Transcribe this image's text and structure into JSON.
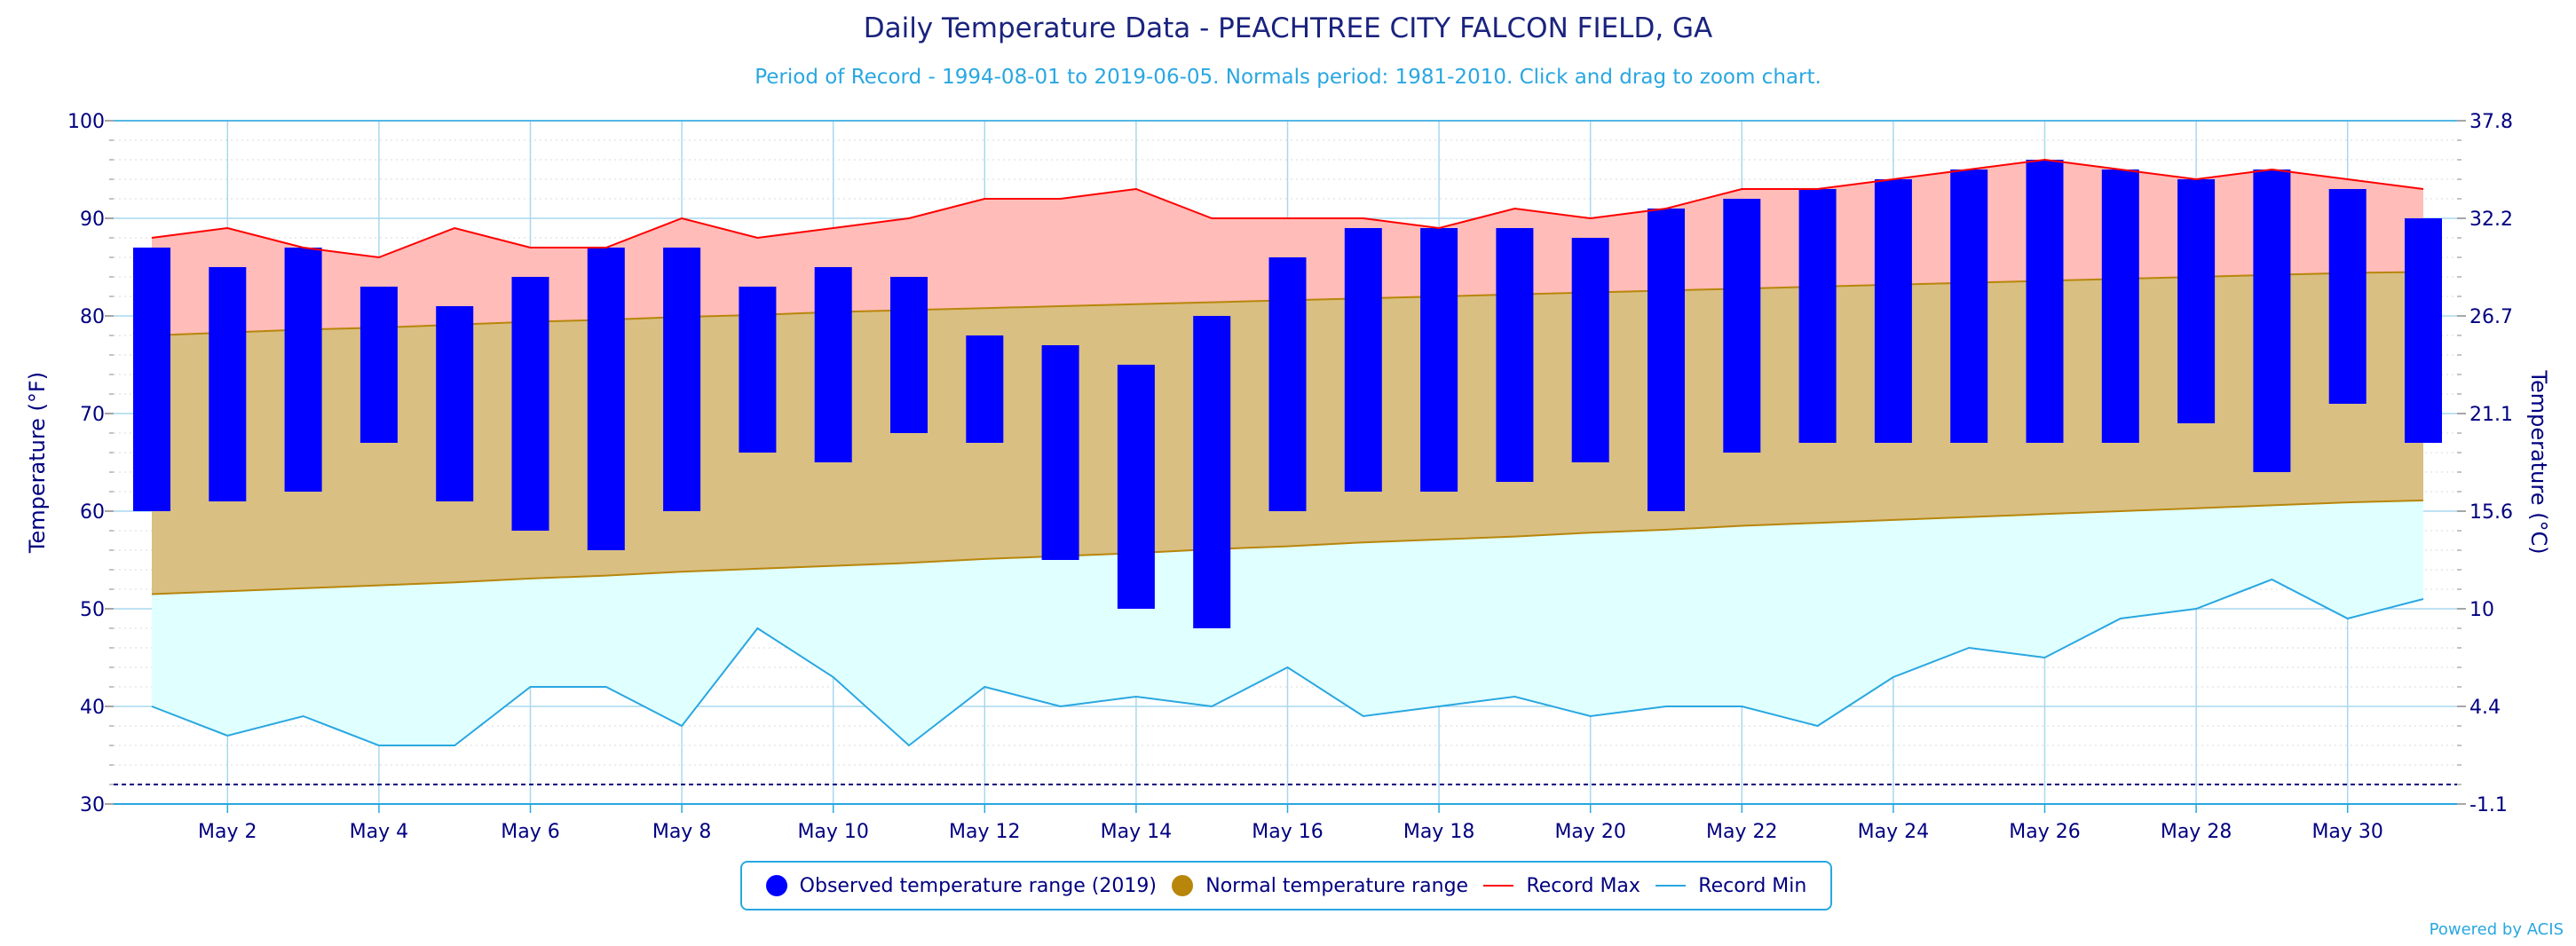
{
  "title": "Daily Temperature Data - PEACHTREE CITY FALCON FIELD, GA",
  "subtitle": "Period of Record - 1994-08-01 to 2019-06-05. Normals period: 1981-2010. Click and drag to zoom chart.",
  "credits": "Powered by ACIS",
  "colors": {
    "observed": "#0000ff",
    "normal_fill": "#d9bf82",
    "normal_line": "#b8860b",
    "record_max_line": "#ff0000",
    "record_max_fill": "#ffbcb8",
    "record_min_line": "#29a7e1",
    "record_min_fill": "#e0ffff",
    "axis": "#29a7e1",
    "text": "#000080"
  },
  "legend": [
    {
      "label": "Observed temperature range (2019)",
      "symbol": "dot",
      "color": "#0000ff"
    },
    {
      "label": "Normal temperature range",
      "symbol": "dot",
      "color": "#b8860b"
    },
    {
      "label": "Record Max",
      "symbol": "line",
      "color": "#ff0000"
    },
    {
      "label": "Record Min",
      "symbol": "line",
      "color": "#29a7e1"
    }
  ],
  "chart_data": {
    "type": "bar",
    "ylabel": "Temperature (°F)",
    "y2label": "Temperature (°C)",
    "ylim": [
      30,
      100
    ],
    "yticks": [
      30,
      40,
      50,
      60,
      70,
      80,
      90,
      100
    ],
    "y2ticks": [
      "-1.1",
      "4.4",
      "10",
      "15.6",
      "21.1",
      "26.7",
      "32.2",
      "37.8"
    ],
    "x_ticks": [
      {
        "day": 2,
        "label": "May 2"
      },
      {
        "day": 4,
        "label": "May 4"
      },
      {
        "day": 6,
        "label": "May 6"
      },
      {
        "day": 8,
        "label": "May 8"
      },
      {
        "day": 10,
        "label": "May 10"
      },
      {
        "day": 12,
        "label": "May 12"
      },
      {
        "day": 14,
        "label": "May 14"
      },
      {
        "day": 16,
        "label": "May 16"
      },
      {
        "day": 18,
        "label": "May 18"
      },
      {
        "day": 20,
        "label": "May 20"
      },
      {
        "day": 22,
        "label": "May 22"
      },
      {
        "day": 24,
        "label": "May 24"
      },
      {
        "day": 26,
        "label": "May 26"
      },
      {
        "day": 28,
        "label": "May 28"
      },
      {
        "day": 30,
        "label": "May 30"
      }
    ],
    "freeze_line": 32,
    "days": [
      1,
      2,
      3,
      4,
      5,
      6,
      7,
      8,
      9,
      10,
      11,
      12,
      13,
      14,
      15,
      16,
      17,
      18,
      19,
      20,
      21,
      22,
      23,
      24,
      25,
      26,
      27,
      28,
      29,
      30,
      31
    ],
    "series": [
      {
        "name": "Observed temperature range (2019)",
        "low": [
          60,
          61,
          62,
          67,
          61,
          58,
          56,
          60,
          66,
          65,
          68,
          67,
          55,
          50,
          48,
          60,
          62,
          62,
          63,
          65,
          60,
          66,
          67,
          67,
          67,
          67,
          67,
          69,
          64,
          71,
          67
        ],
        "high": [
          87,
          85,
          87,
          83,
          81,
          84,
          87,
          87,
          83,
          85,
          84,
          78,
          77,
          75,
          80,
          86,
          89,
          89,
          89,
          88,
          91,
          92,
          93,
          94,
          95,
          96,
          95,
          94,
          95,
          93,
          90
        ]
      },
      {
        "name": "Normal temperature range",
        "low": [
          51.5,
          51.8,
          52.1,
          52.4,
          52.7,
          53.1,
          53.4,
          53.8,
          54.1,
          54.4,
          54.7,
          55.1,
          55.4,
          55.7,
          56.1,
          56.4,
          56.8,
          57.1,
          57.4,
          57.8,
          58.1,
          58.5,
          58.8,
          59.1,
          59.4,
          59.7,
          60.0,
          60.3,
          60.6,
          60.9,
          61.1
        ],
        "high": [
          78.0,
          78.3,
          78.6,
          78.8,
          79.1,
          79.4,
          79.6,
          79.9,
          80.1,
          80.4,
          80.6,
          80.8,
          81.0,
          81.2,
          81.4,
          81.6,
          81.8,
          82.0,
          82.2,
          82.4,
          82.6,
          82.8,
          83.0,
          83.2,
          83.4,
          83.6,
          83.8,
          84.0,
          84.2,
          84.4,
          84.5
        ]
      },
      {
        "name": "Record Max",
        "values": [
          88,
          89,
          87,
          86,
          89,
          87,
          87,
          90,
          88,
          89,
          90,
          92,
          92,
          93,
          90,
          90,
          90,
          89,
          91,
          90,
          91,
          93,
          93,
          94,
          95,
          96,
          95,
          94,
          95,
          94,
          93
        ]
      },
      {
        "name": "Record Min",
        "values": [
          40,
          37,
          39,
          36,
          36,
          42,
          42,
          38,
          48,
          43,
          36,
          42,
          40,
          41,
          40,
          44,
          39,
          40,
          41,
          39,
          40,
          40,
          38,
          43,
          46,
          45,
          49,
          50,
          53,
          49,
          51
        ]
      }
    ]
  }
}
